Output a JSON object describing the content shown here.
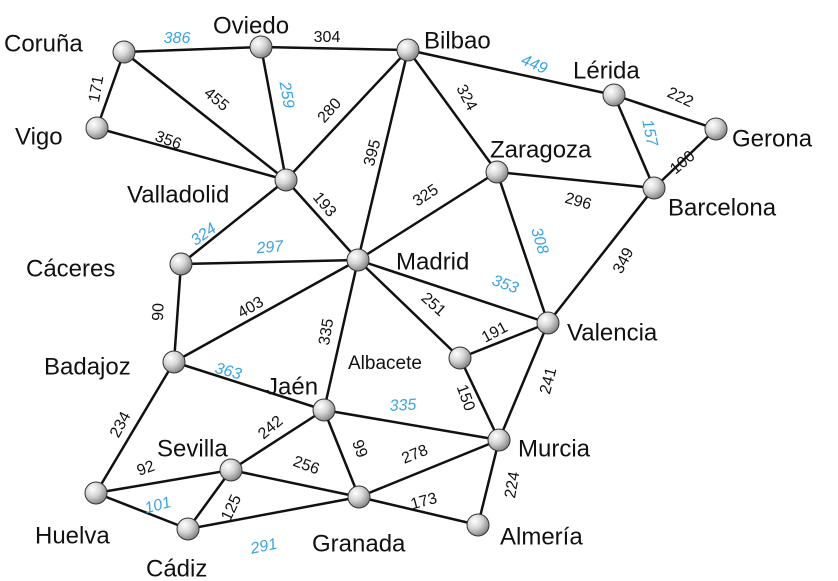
{
  "colors": {
    "edge": "#111111",
    "black_label": "#111111",
    "blue_label": "#3aa3e0"
  },
  "cities": [
    {
      "id": "coruna",
      "name": "Coruña"
    },
    {
      "id": "oviedo",
      "name": "Oviedo"
    },
    {
      "id": "bilbao",
      "name": "Bilbao"
    },
    {
      "id": "lerida",
      "name": "Lérida"
    },
    {
      "id": "gerona",
      "name": "Gerona"
    },
    {
      "id": "vigo",
      "name": "Vigo"
    },
    {
      "id": "zaragoza",
      "name": "Zaragoza"
    },
    {
      "id": "barcelona",
      "name": "Barcelona"
    },
    {
      "id": "valladolid",
      "name": "Valladolid"
    },
    {
      "id": "caceres",
      "name": "Cáceres"
    },
    {
      "id": "madrid",
      "name": "Madrid"
    },
    {
      "id": "valencia",
      "name": "Valencia"
    },
    {
      "id": "badajoz",
      "name": "Badajoz"
    },
    {
      "id": "albacete",
      "name": "Albacete"
    },
    {
      "id": "jaen",
      "name": "Jaén"
    },
    {
      "id": "sevilla",
      "name": "Sevilla"
    },
    {
      "id": "murcia",
      "name": "Murcia"
    },
    {
      "id": "huelva",
      "name": "Huelva"
    },
    {
      "id": "cadiz",
      "name": "Cádiz"
    },
    {
      "id": "granada",
      "name": "Granada"
    },
    {
      "id": "almeria",
      "name": "Almería"
    }
  ],
  "roads": [
    {
      "from": "coruna",
      "to": "oviedo",
      "distance": "386",
      "highlight": true
    },
    {
      "from": "oviedo",
      "to": "bilbao",
      "distance": "304",
      "highlight": false
    },
    {
      "from": "bilbao",
      "to": "lerida",
      "distance": "449",
      "highlight": true
    },
    {
      "from": "lerida",
      "to": "gerona",
      "distance": "222",
      "highlight": false
    },
    {
      "from": "coruna",
      "to": "vigo",
      "distance": "171",
      "highlight": false
    },
    {
      "from": "coruna",
      "to": "valladolid",
      "distance": "455",
      "highlight": false
    },
    {
      "from": "vigo",
      "to": "valladolid",
      "distance": "356",
      "highlight": false
    },
    {
      "from": "oviedo",
      "to": "valladolid",
      "distance": "259",
      "highlight": true
    },
    {
      "from": "bilbao",
      "to": "valladolid",
      "distance": "280",
      "highlight": false
    },
    {
      "from": "bilbao",
      "to": "zaragoza",
      "distance": "324",
      "highlight": false
    },
    {
      "from": "bilbao",
      "to": "madrid",
      "distance": "395",
      "highlight": false
    },
    {
      "from": "lerida",
      "to": "barcelona",
      "distance": "157",
      "highlight": true
    },
    {
      "from": "gerona",
      "to": "barcelona",
      "distance": "100",
      "highlight": false
    },
    {
      "from": "zaragoza",
      "to": "barcelona",
      "distance": "296",
      "highlight": false
    },
    {
      "from": "zaragoza",
      "to": "madrid",
      "distance": "325",
      "highlight": false
    },
    {
      "from": "zaragoza",
      "to": "valencia",
      "distance": "308",
      "highlight": true
    },
    {
      "from": "barcelona",
      "to": "valencia",
      "distance": "349",
      "highlight": false
    },
    {
      "from": "valladolid",
      "to": "madrid",
      "distance": "193",
      "highlight": false
    },
    {
      "from": "valladolid",
      "to": "caceres",
      "distance": "324",
      "highlight": true
    },
    {
      "from": "caceres",
      "to": "madrid",
      "distance": "297",
      "highlight": true
    },
    {
      "from": "madrid",
      "to": "valencia",
      "distance": "353",
      "highlight": true
    },
    {
      "from": "madrid",
      "to": "albacete",
      "distance": "251",
      "highlight": false
    },
    {
      "from": "madrid",
      "to": "badajoz",
      "distance": "403",
      "highlight": false
    },
    {
      "from": "madrid",
      "to": "jaen",
      "distance": "335",
      "highlight": false
    },
    {
      "from": "caceres",
      "to": "badajoz",
      "distance": "90",
      "highlight": false
    },
    {
      "from": "albacete",
      "to": "valencia",
      "distance": "191",
      "highlight": false
    },
    {
      "from": "albacete",
      "to": "murcia",
      "distance": "150",
      "highlight": false
    },
    {
      "from": "valencia",
      "to": "murcia",
      "distance": "241",
      "highlight": false
    },
    {
      "from": "badajoz",
      "to": "jaen",
      "distance": "363",
      "highlight": true
    },
    {
      "from": "badajoz",
      "to": "huelva",
      "distance": "234",
      "highlight": false
    },
    {
      "from": "jaen",
      "to": "murcia",
      "distance": "335",
      "highlight": true
    },
    {
      "from": "jaen",
      "to": "sevilla",
      "distance": "242",
      "highlight": false
    },
    {
      "from": "jaen",
      "to": "granada",
      "distance": "99",
      "highlight": false
    },
    {
      "from": "sevilla",
      "to": "huelva",
      "distance": "92",
      "highlight": false
    },
    {
      "from": "sevilla",
      "to": "cadiz",
      "distance": "125",
      "highlight": false
    },
    {
      "from": "sevilla",
      "to": "granada",
      "distance": "256",
      "highlight": false
    },
    {
      "from": "huelva",
      "to": "cadiz",
      "distance": "101",
      "highlight": true
    },
    {
      "from": "cadiz",
      "to": "granada",
      "distance": "291",
      "highlight": true
    },
    {
      "from": "granada",
      "to": "murcia",
      "distance": "278",
      "highlight": false
    },
    {
      "from": "granada",
      "to": "almeria",
      "distance": "173",
      "highlight": false
    },
    {
      "from": "murcia",
      "to": "almeria",
      "distance": "224",
      "highlight": false
    }
  ]
}
